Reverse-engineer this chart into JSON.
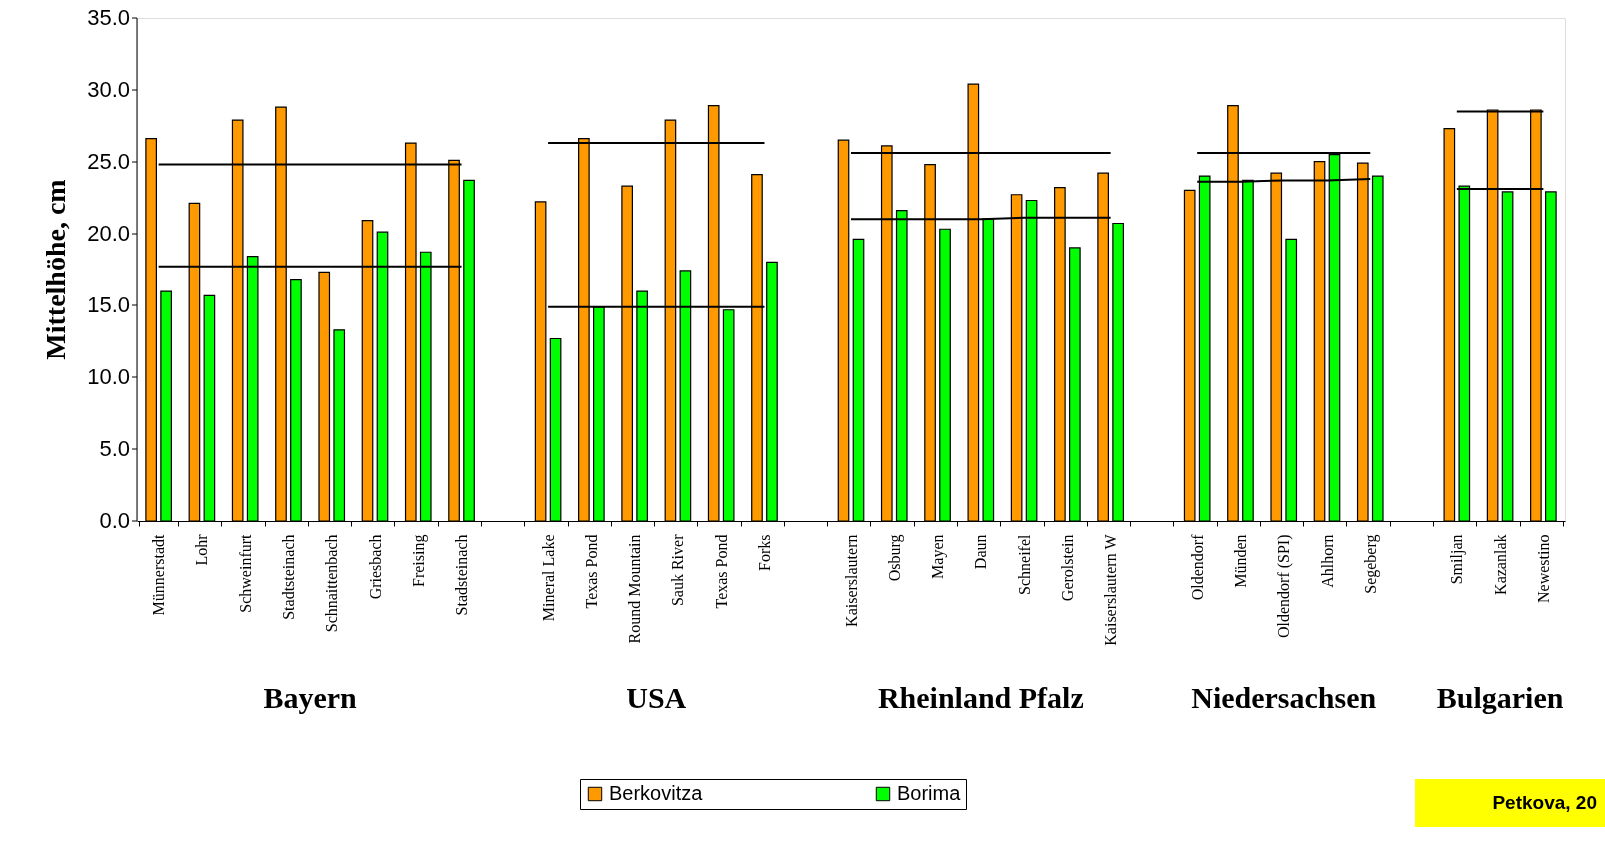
{
  "chart_data": {
    "type": "bar",
    "ylabel": "Mittelhöhe, cm",
    "categories": [
      "Münnerstadt",
      "Lohr",
      "Schweinfurt",
      "Stadtsteinach",
      "Schnaittenbach",
      "Griesbach",
      "Freising",
      "Stadsteinach",
      null,
      "Mineral Lake",
      "Texas Pond",
      "Round Mountain",
      "Sauk River",
      "Texas Pond",
      "Forks",
      null,
      "Kaiserslautern",
      "Osburg",
      "Mayen",
      "Daun",
      "Schneifel",
      "Gerolstein",
      "Kaiserslautern W",
      null,
      "Oldendorf",
      "Münden",
      "Oldendorf (SPI)",
      "Ahlhorn",
      "Segeberg",
      null,
      "Smiljan",
      "Kazanlak",
      "Newestino"
    ],
    "series": [
      {
        "name": "Berkovitza",
        "color": "#ff9900",
        "values": [
          26.6,
          22.1,
          27.9,
          28.8,
          17.3,
          20.9,
          26.3,
          25.1,
          null,
          22.2,
          26.6,
          23.3,
          27.9,
          28.9,
          24.1,
          null,
          26.5,
          26.1,
          24.8,
          30.4,
          22.7,
          23.2,
          24.2,
          null,
          23.0,
          28.9,
          24.2,
          25.0,
          24.9,
          null,
          27.3,
          28.6,
          28.6
        ]
      },
      {
        "name": "Borima",
        "color": "#00ff00",
        "values": [
          16.0,
          15.7,
          18.4,
          16.8,
          13.3,
          20.1,
          18.7,
          23.7,
          null,
          12.7,
          14.9,
          16.0,
          17.4,
          14.7,
          18.0,
          null,
          19.6,
          21.6,
          20.3,
          21.0,
          22.3,
          19.0,
          20.7,
          null,
          24.0,
          23.7,
          19.6,
          25.5,
          24.0,
          null,
          23.3,
          22.9,
          22.9
        ]
      },
      {
        "type": "line",
        "color": "#000000",
        "values": [
          24.8,
          24.8,
          24.8,
          24.8,
          24.8,
          24.8,
          24.8,
          24.8,
          null,
          26.3,
          26.3,
          26.3,
          26.3,
          26.3,
          26.3,
          null,
          25.6,
          25.6,
          25.6,
          25.6,
          25.6,
          25.6,
          25.6,
          null,
          25.6,
          25.6,
          25.6,
          25.6,
          25.6,
          null,
          28.5,
          28.5,
          28.5
        ]
      },
      {
        "type": "line",
        "color": "#000000",
        "values": [
          17.7,
          17.7,
          17.7,
          17.7,
          17.7,
          17.7,
          17.7,
          17.7,
          null,
          14.9,
          14.9,
          14.9,
          14.9,
          14.9,
          14.9,
          null,
          21.0,
          21.0,
          21.0,
          21.0,
          21.1,
          21.1,
          21.1,
          null,
          23.6,
          23.6,
          23.7,
          23.7,
          23.8,
          null,
          23.1,
          23.1,
          23.1
        ]
      }
    ],
    "ylim": [
      0,
      35
    ],
    "yticks": [
      {
        "value": 0,
        "label": "0.0"
      },
      {
        "value": 5,
        "label": "5.0"
      },
      {
        "value": 10,
        "label": "10.0"
      },
      {
        "value": 15,
        "label": "15.0"
      },
      {
        "value": 20,
        "label": "20.0"
      },
      {
        "value": 25,
        "label": "25.0"
      },
      {
        "value": 30,
        "label": "30.0"
      },
      {
        "value": 35,
        "label": "35.0"
      }
    ],
    "legend": "bottom",
    "annotations": [
      "Bayern",
      "USA",
      "Rheinland Pfalz",
      "Niedersachsen",
      "Bulgarien",
      "Petkova, 20"
    ]
  }
}
